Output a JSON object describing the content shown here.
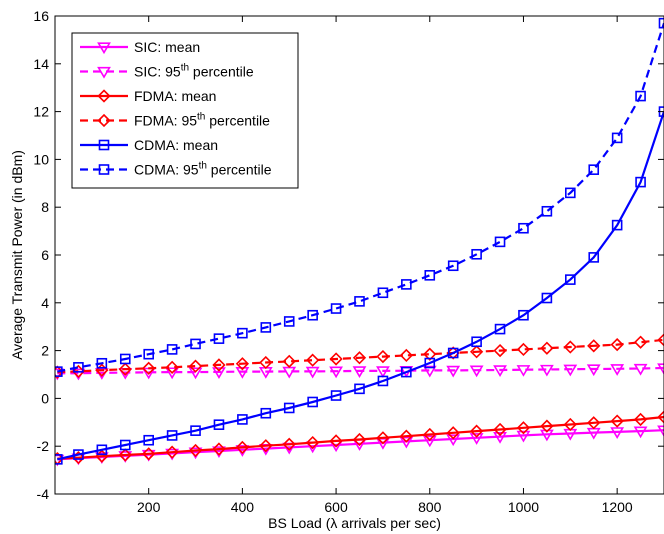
{
  "chart_data": {
    "type": "line",
    "xlabel": "BS Load (λ arrivals per sec)",
    "ylabel": "Average Transmit Power (in dBm)",
    "xlim": [
      0,
      1300
    ],
    "ylim": [
      -4,
      16
    ],
    "xticks": [
      200,
      400,
      600,
      800,
      1000,
      1200
    ],
    "yticks": [
      -4,
      -2,
      0,
      2,
      4,
      6,
      8,
      10,
      12,
      14,
      16
    ],
    "legend_position": "top-left",
    "x": [
      5,
      50,
      100,
      150,
      200,
      250,
      300,
      350,
      400,
      450,
      500,
      550,
      600,
      650,
      700,
      750,
      800,
      850,
      900,
      950,
      1000,
      1050,
      1100,
      1150,
      1200,
      1250,
      1300
    ],
    "series": [
      {
        "name": "SIC: mean",
        "legend_base": "SIC: mean",
        "legend_sup": "",
        "legend_after": "",
        "color": "#ff00ff",
        "dash": false,
        "marker": "triangle-down",
        "values": [
          -2.55,
          -2.5,
          -2.45,
          -2.4,
          -2.35,
          -2.3,
          -2.25,
          -2.2,
          -2.15,
          -2.1,
          -2.05,
          -2.0,
          -1.95,
          -1.9,
          -1.85,
          -1.8,
          -1.75,
          -1.7,
          -1.65,
          -1.6,
          -1.55,
          -1.5,
          -1.47,
          -1.43,
          -1.4,
          -1.37,
          -1.33
        ]
      },
      {
        "name": "SIC: 95th percentile",
        "legend_base": "SIC: 95",
        "legend_sup": "th",
        "legend_after": " percentile",
        "color": "#ff00ff",
        "dash": true,
        "marker": "triangle-down",
        "values": [
          1.05,
          1.05,
          1.07,
          1.08,
          1.09,
          1.1,
          1.1,
          1.11,
          1.12,
          1.12,
          1.13,
          1.13,
          1.14,
          1.15,
          1.15,
          1.16,
          1.17,
          1.17,
          1.18,
          1.19,
          1.2,
          1.21,
          1.22,
          1.23,
          1.24,
          1.25,
          1.27
        ]
      },
      {
        "name": "FDMA: mean",
        "legend_base": "FDMA: mean",
        "legend_sup": "",
        "legend_after": "",
        "color": "#ff0000",
        "dash": false,
        "marker": "diamond",
        "values": [
          -2.52,
          -2.48,
          -2.42,
          -2.37,
          -2.32,
          -2.25,
          -2.18,
          -2.12,
          -2.05,
          -1.98,
          -1.92,
          -1.85,
          -1.78,
          -1.72,
          -1.65,
          -1.58,
          -1.51,
          -1.44,
          -1.37,
          -1.3,
          -1.23,
          -1.16,
          -1.09,
          -1.02,
          -0.95,
          -0.88,
          -0.78
        ]
      },
      {
        "name": "FDMA: 95th percentile",
        "legend_base": "FDMA: 95",
        "legend_sup": "th",
        "legend_after": " percentile",
        "color": "#ff0000",
        "dash": true,
        "marker": "diamond",
        "values": [
          1.1,
          1.13,
          1.18,
          1.22,
          1.26,
          1.3,
          1.35,
          1.4,
          1.45,
          1.5,
          1.55,
          1.6,
          1.65,
          1.7,
          1.75,
          1.8,
          1.85,
          1.9,
          1.95,
          2.0,
          2.05,
          2.1,
          2.15,
          2.2,
          2.25,
          2.35,
          2.45
        ]
      },
      {
        "name": "CDMA: mean",
        "legend_base": "CDMA: mean",
        "legend_sup": "",
        "legend_after": "",
        "color": "#0000ff",
        "dash": false,
        "marker": "square",
        "values": [
          -2.55,
          -2.35,
          -2.15,
          -1.95,
          -1.75,
          -1.55,
          -1.35,
          -1.1,
          -0.88,
          -0.62,
          -0.4,
          -0.15,
          0.12,
          0.4,
          0.73,
          1.1,
          1.48,
          1.9,
          2.37,
          2.9,
          3.48,
          4.2,
          4.97,
          5.9,
          7.25,
          9.05,
          12.0
        ]
      },
      {
        "name": "CDMA: 95th percentile",
        "legend_base": "CDMA: 95",
        "legend_sup": "th",
        "legend_after": " percentile",
        "color": "#0000ff",
        "dash": true,
        "marker": "square",
        "values": [
          1.12,
          1.3,
          1.47,
          1.65,
          1.85,
          2.05,
          2.28,
          2.5,
          2.73,
          2.97,
          3.22,
          3.48,
          3.76,
          4.06,
          4.42,
          4.77,
          5.15,
          5.55,
          6.03,
          6.55,
          7.12,
          7.83,
          8.6,
          9.57,
          10.9,
          12.65,
          15.7
        ]
      }
    ]
  }
}
